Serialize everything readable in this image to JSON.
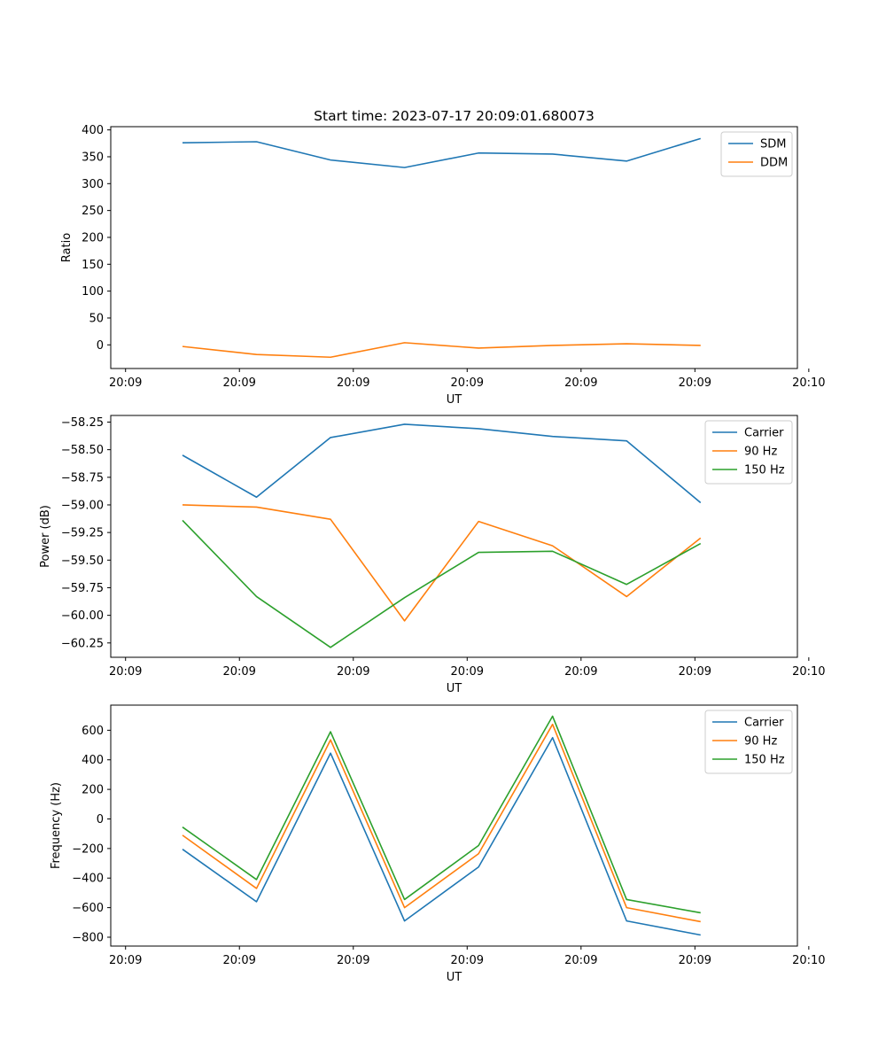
{
  "chart_data": [
    {
      "type": "line",
      "title": "Start time: 2023-07-17 20:09:01.680073",
      "xlabel": "UT",
      "ylabel": "Ratio",
      "x": [
        0.5,
        1.15,
        1.8,
        2.45,
        3.1,
        3.75,
        4.4,
        5.05
      ],
      "xlim": [
        -0.13,
        5.9
      ],
      "ylim": [
        -44,
        406
      ],
      "xticks": [
        0,
        1,
        2,
        3,
        4,
        5,
        6
      ],
      "xtick_labels": [
        "20:09",
        "20:09",
        "20:09",
        "20:09",
        "20:09",
        "20:09",
        "20:10"
      ],
      "yticks": [
        0,
        50,
        100,
        150,
        200,
        250,
        300,
        350,
        400
      ],
      "ytick_labels": [
        "0",
        "50",
        "100",
        "150",
        "200",
        "250",
        "300",
        "350",
        "400"
      ],
      "legend_position": "top-right",
      "series": [
        {
          "name": "SDM",
          "color": "#1f77b4",
          "values": [
            376,
            378,
            344,
            330,
            357,
            355,
            342,
            384
          ]
        },
        {
          "name": "DDM",
          "color": "#ff7f0e",
          "values": [
            -3,
            -18,
            -23,
            4,
            -6,
            -1,
            2,
            -1
          ]
        }
      ]
    },
    {
      "type": "line",
      "title": "",
      "xlabel": "UT",
      "ylabel": "Power (dB)",
      "x": [
        0.5,
        1.15,
        1.8,
        2.45,
        3.1,
        3.75,
        4.4,
        5.05
      ],
      "xlim": [
        -0.13,
        5.9
      ],
      "ylim": [
        -60.38,
        -58.19
      ],
      "xticks": [
        0,
        1,
        2,
        3,
        4,
        5,
        6
      ],
      "xtick_labels": [
        "20:09",
        "20:09",
        "20:09",
        "20:09",
        "20:09",
        "20:09",
        "20:10"
      ],
      "yticks": [
        -60.25,
        -60.0,
        -59.75,
        -59.5,
        -59.25,
        -59.0,
        -58.75,
        -58.5,
        -58.25
      ],
      "ytick_labels": [
        "−60.25",
        "−60.00",
        "−59.75",
        "−59.50",
        "−59.25",
        "−59.00",
        "−58.75",
        "−58.50",
        "−58.25"
      ],
      "legend_position": "top-right",
      "series": [
        {
          "name": "Carrier",
          "color": "#1f77b4",
          "values": [
            -58.55,
            -58.93,
            -58.39,
            -58.27,
            -58.31,
            -58.38,
            -58.42,
            -58.98
          ]
        },
        {
          "name": "90 Hz",
          "color": "#ff7f0e",
          "values": [
            -59.0,
            -59.02,
            -59.13,
            -60.05,
            -59.15,
            -59.37,
            -59.83,
            -59.3
          ]
        },
        {
          "name": "150 Hz",
          "color": "#2ca02c",
          "values": [
            -59.14,
            -59.83,
            -60.29,
            -59.84,
            -59.43,
            -59.42,
            -59.72,
            -59.35
          ]
        }
      ]
    },
    {
      "type": "line",
      "title": "",
      "xlabel": "UT",
      "ylabel": "Frequency (Hz)",
      "x": [
        0.5,
        1.15,
        1.8,
        2.45,
        3.1,
        3.75,
        4.4,
        5.05
      ],
      "xlim": [
        -0.13,
        5.9
      ],
      "ylim": [
        -860,
        770
      ],
      "xticks": [
        0,
        1,
        2,
        3,
        4,
        5,
        6
      ],
      "xtick_labels": [
        "20:09",
        "20:09",
        "20:09",
        "20:09",
        "20:09",
        "20:09",
        "20:10"
      ],
      "yticks": [
        -800,
        -600,
        -400,
        -200,
        0,
        200,
        400,
        600
      ],
      "ytick_labels": [
        "−800",
        "−600",
        "−400",
        "−200",
        "0",
        "200",
        "400",
        "600"
      ],
      "legend_position": "top-right",
      "series": [
        {
          "name": "Carrier",
          "color": "#1f77b4",
          "values": [
            -205,
            -560,
            445,
            -690,
            -325,
            550,
            -690,
            -785
          ]
        },
        {
          "name": "90 Hz",
          "color": "#ff7f0e",
          "values": [
            -110,
            -470,
            535,
            -600,
            -235,
            640,
            -600,
            -695
          ]
        },
        {
          "name": "150 Hz",
          "color": "#2ca02c",
          "values": [
            -55,
            -410,
            590,
            -545,
            -180,
            695,
            -545,
            -635
          ]
        }
      ]
    }
  ]
}
